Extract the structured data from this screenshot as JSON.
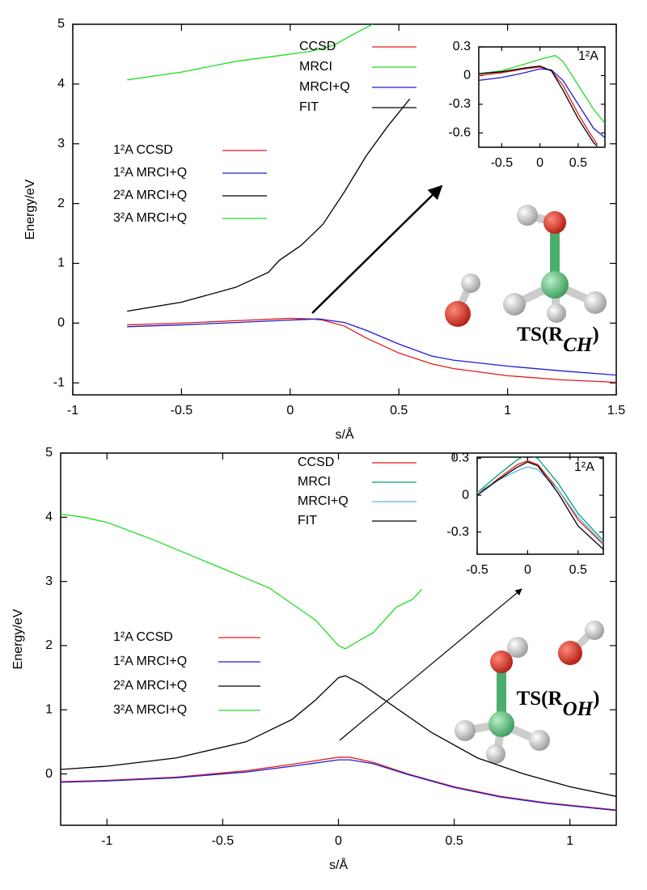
{
  "chart_data": [
    {
      "type": "line",
      "x_label": "s/Å",
      "y_label": "Energy/eV",
      "xlim": [
        -1,
        1.5
      ],
      "ylim": [
        -1.2,
        5
      ],
      "xticks": [
        -1,
        -0.5,
        0,
        0.5,
        1,
        1.5
      ],
      "yticks": [
        -1,
        0,
        1,
        2,
        3,
        4,
        5
      ],
      "annotation": [
        "TS(R",
        "CH",
        ")"
      ],
      "series": [
        {
          "name": "1²A CCSD",
          "color": "#e41a1c",
          "x": [
            -0.75,
            -0.5,
            -0.25,
            0,
            0.1,
            0.15,
            0.25,
            0.35,
            0.5,
            0.65,
            0.75,
            1,
            1.25,
            1.5
          ],
          "values": [
            -0.03,
            0,
            0.04,
            0.08,
            0.07,
            0.05,
            -0.05,
            -0.25,
            -0.5,
            -0.68,
            -0.76,
            -0.88,
            -0.95,
            -0.99
          ]
        },
        {
          "name": "1²A MRCI+Q",
          "color": "#1f1fd0",
          "x": [
            -0.75,
            -0.5,
            -0.25,
            0,
            0.13,
            0.25,
            0.35,
            0.5,
            0.65,
            0.75,
            1,
            1.25,
            1.5
          ],
          "values": [
            -0.06,
            -0.03,
            0.01,
            0.05,
            0.07,
            0.01,
            -0.12,
            -0.35,
            -0.55,
            -0.62,
            -0.72,
            -0.8,
            -0.87
          ]
        },
        {
          "name": "2²A MRCI+Q",
          "color": "#000000",
          "x": [
            -0.75,
            -0.5,
            -0.25,
            -0.1,
            -0.05,
            0.05,
            0.15,
            0.25,
            0.35,
            0.45,
            0.55
          ],
          "values": [
            0.2,
            0.35,
            0.6,
            0.85,
            1.05,
            1.3,
            1.65,
            2.2,
            2.8,
            3.3,
            3.75
          ]
        },
        {
          "name": "3²A MRCI+Q",
          "color": "#22dd22",
          "x": [
            -0.75,
            -0.5,
            -0.25,
            0,
            0.1,
            0.2,
            0.3,
            0.38
          ],
          "values": [
            4.07,
            4.2,
            4.38,
            4.5,
            4.55,
            4.65,
            4.85,
            5.0
          ]
        }
      ]
    },
    {
      "type": "line",
      "label": "1²A",
      "xlim": [
        -0.8,
        0.85
      ],
      "ylim": [
        -0.75,
        0.3
      ],
      "xticks": [
        -0.5,
        0,
        0.5
      ],
      "yticks": [
        -0.6,
        -0.3,
        0,
        0.3
      ],
      "series": [
        {
          "name": "CCSD",
          "color": "#e41a1c",
          "x": [
            -0.8,
            -0.5,
            -0.2,
            0,
            0.15,
            0.3,
            0.5,
            0.65,
            0.75
          ],
          "values": [
            0,
            0.03,
            0.07,
            0.09,
            0.05,
            -0.1,
            -0.4,
            -0.6,
            -0.72
          ]
        },
        {
          "name": "MRCI",
          "color": "#22dd22",
          "x": [
            -0.8,
            -0.5,
            -0.2,
            0,
            0.2,
            0.3,
            0.5,
            0.7,
            0.85
          ],
          "values": [
            0.02,
            0.05,
            0.12,
            0.17,
            0.21,
            0.15,
            -0.1,
            -0.35,
            -0.5
          ]
        },
        {
          "name": "MRCI+Q",
          "color": "#1f1fd0",
          "x": [
            -0.8,
            -0.5,
            -0.2,
            0,
            0.15,
            0.3,
            0.5,
            0.7,
            0.85
          ],
          "values": [
            -0.05,
            -0.02,
            0.03,
            0.07,
            0.06,
            -0.05,
            -0.3,
            -0.55,
            -0.65
          ]
        },
        {
          "name": "FIT",
          "color": "#000000",
          "x": [
            -0.8,
            -0.5,
            -0.2,
            0,
            0.15,
            0.3,
            0.5,
            0.7,
            0.75
          ],
          "values": [
            0.02,
            0.04,
            0.08,
            0.1,
            0.05,
            -0.15,
            -0.45,
            -0.7,
            -0.74
          ]
        }
      ]
    },
    {
      "type": "line",
      "x_label": "s/Å",
      "y_label": "Energy/eV",
      "xlim": [
        -1.2,
        1.2
      ],
      "ylim": [
        -0.8,
        5
      ],
      "xticks": [
        -1,
        -0.5,
        0,
        0.5,
        1
      ],
      "yticks": [
        0,
        1,
        2,
        3,
        4,
        5
      ],
      "annotation": [
        "TS(R",
        "OH",
        ")"
      ],
      "series": [
        {
          "name": "1²A CCSD",
          "color": "#e41a1c",
          "x": [
            -1.2,
            -1,
            -0.7,
            -0.4,
            -0.2,
            0,
            0.05,
            0.15,
            0.3,
            0.5,
            0.7,
            0.9,
            1.2
          ],
          "values": [
            -0.12,
            -0.1,
            -0.05,
            0.05,
            0.15,
            0.26,
            0.26,
            0.18,
            0,
            -0.2,
            -0.35,
            -0.45,
            -0.56
          ]
        },
        {
          "name": "1²A MRCI+Q",
          "color": "#1f1fd0",
          "x": [
            -1.2,
            -1,
            -0.7,
            -0.4,
            -0.2,
            0,
            0.05,
            0.15,
            0.3,
            0.5,
            0.7,
            0.9,
            1.2
          ],
          "values": [
            -0.13,
            -0.11,
            -0.06,
            0.03,
            0.12,
            0.22,
            0.22,
            0.16,
            -0.01,
            -0.21,
            -0.36,
            -0.46,
            -0.57
          ]
        },
        {
          "name": "2²A MRCI+Q",
          "color": "#000000",
          "x": [
            -1.2,
            -1,
            -0.7,
            -0.4,
            -0.2,
            -0.1,
            0,
            0.03,
            0.1,
            0.2,
            0.4,
            0.6,
            0.8,
            1,
            1.2
          ],
          "values": [
            0.07,
            0.12,
            0.25,
            0.5,
            0.85,
            1.15,
            1.5,
            1.53,
            1.4,
            1.15,
            0.65,
            0.25,
            0,
            -0.2,
            -0.35
          ]
        },
        {
          "name": "3²A MRCI+Q",
          "color": "#22dd22",
          "x": [
            -1.2,
            -1.1,
            -1,
            -0.8,
            -0.5,
            -0.3,
            -0.1,
            0,
            0.03,
            0.1,
            0.15,
            0.25,
            0.32,
            0.36
          ],
          "values": [
            4.05,
            4,
            3.92,
            3.65,
            3.2,
            2.9,
            2.4,
            2,
            1.95,
            2.1,
            2.2,
            2.6,
            2.72,
            2.88
          ]
        }
      ]
    },
    {
      "type": "line",
      "label": "1²A",
      "xlim": [
        -0.5,
        0.75
      ],
      "ylim": [
        -0.48,
        0.31
      ],
      "xticks": [
        -0.5,
        0,
        0.5
      ],
      "yticks": [
        -0.3,
        0,
        0.3
      ],
      "series": [
        {
          "name": "CCSD",
          "color": "#e41a1c",
          "x": [
            -0.5,
            -0.3,
            -0.1,
            0,
            0.1,
            0.3,
            0.5,
            0.75
          ],
          "values": [
            0,
            0.13,
            0.25,
            0.28,
            0.25,
            0.05,
            -0.2,
            -0.4
          ]
        },
        {
          "name": "MRCI",
          "color": "#00a070",
          "x": [
            -0.5,
            -0.3,
            -0.1,
            0,
            0.1,
            0.3,
            0.5,
            0.75
          ],
          "values": [
            0.02,
            0.16,
            0.29,
            0.33,
            0.3,
            0.1,
            -0.15,
            -0.37
          ]
        },
        {
          "name": "MRCI+Q",
          "color": "#56b4e9",
          "x": [
            -0.5,
            -0.3,
            -0.1,
            0,
            0.1,
            0.3,
            0.5,
            0.75
          ],
          "values": [
            0.02,
            0.12,
            0.2,
            0.23,
            0.21,
            0.05,
            -0.18,
            -0.39
          ]
        },
        {
          "name": "FIT",
          "color": "#000000",
          "x": [
            -0.5,
            -0.3,
            -0.1,
            0,
            0.1,
            0.3,
            0.5,
            0.75
          ],
          "values": [
            0,
            0.12,
            0.23,
            0.27,
            0.24,
            0.02,
            -0.25,
            -0.44
          ]
        }
      ]
    }
  ]
}
